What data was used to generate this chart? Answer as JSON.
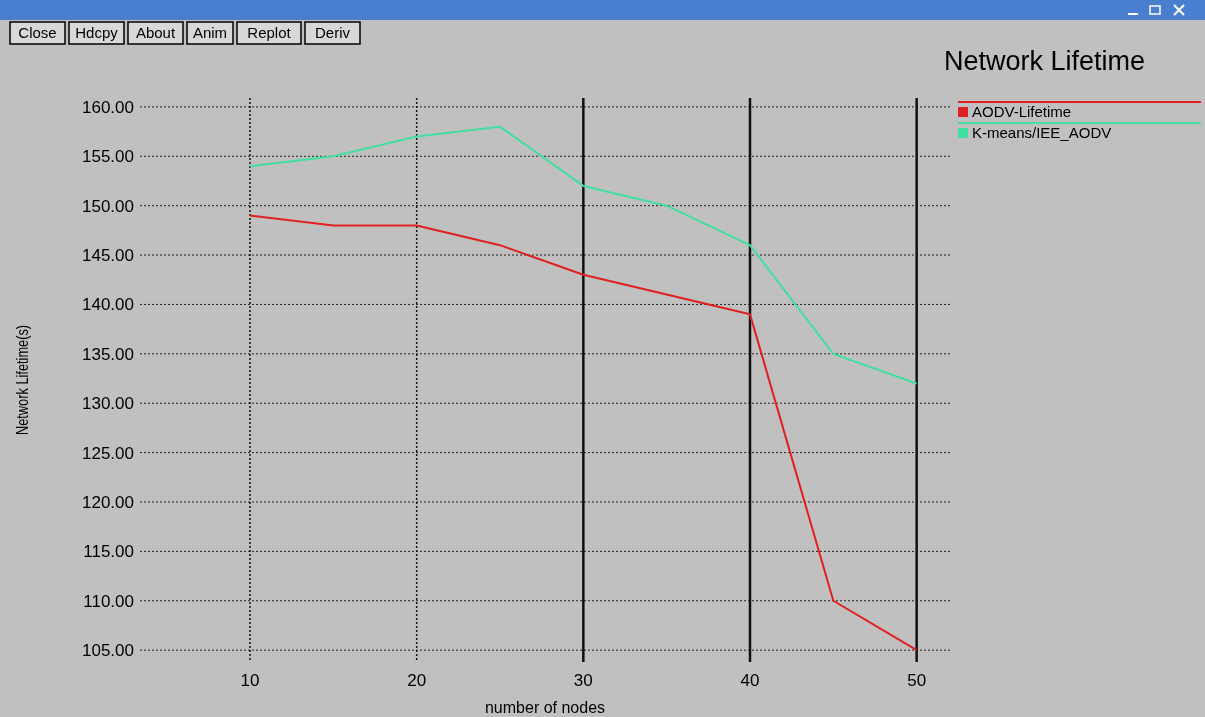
{
  "chart_data": {
    "type": "line",
    "title": "Network Lifetime",
    "xlabel": "number of nodes",
    "ylabel": "Network Lifetime(s)",
    "annotations": [
      "Close",
      "Hdcpy",
      "About",
      "Anim",
      "Replot",
      "Deriv"
    ],
    "x": [
      10,
      15,
      20,
      25,
      30,
      35,
      40,
      45,
      50
    ],
    "series": [
      {
        "name": "AODV-Lifetime",
        "color": "#e02020",
        "values": [
          149,
          148,
          148,
          146,
          143,
          141,
          139,
          110,
          105
        ]
      },
      {
        "name": "K-means/IEE_AODV",
        "color": "#40e0a0",
        "values": [
          154,
          155,
          157,
          158,
          152,
          150,
          146,
          135,
          132
        ]
      }
    ],
    "xlim": [
      3.4,
      52
    ],
    "ylim": [
      103.8,
      160.9
    ],
    "xticks": [
      10,
      20,
      30,
      40,
      50
    ],
    "yticks": [
      {
        "value": 105,
        "label": "105.00"
      },
      {
        "value": 110,
        "label": "110.00"
      },
      {
        "value": 115,
        "label": "115.00"
      },
      {
        "value": 120,
        "label": "120.00"
      },
      {
        "value": 125,
        "label": "125.00"
      },
      {
        "value": 130,
        "label": "130.00"
      },
      {
        "value": 135,
        "label": "135.00"
      },
      {
        "value": 140,
        "label": "140.00"
      },
      {
        "value": 145,
        "label": "145.00"
      },
      {
        "value": 150,
        "label": "150.00"
      },
      {
        "value": 155,
        "label": "155.00"
      },
      {
        "value": 160,
        "label": "160.00"
      }
    ],
    "grid": true,
    "legend": "right",
    "line_style": "solid",
    "marker": "none"
  }
}
